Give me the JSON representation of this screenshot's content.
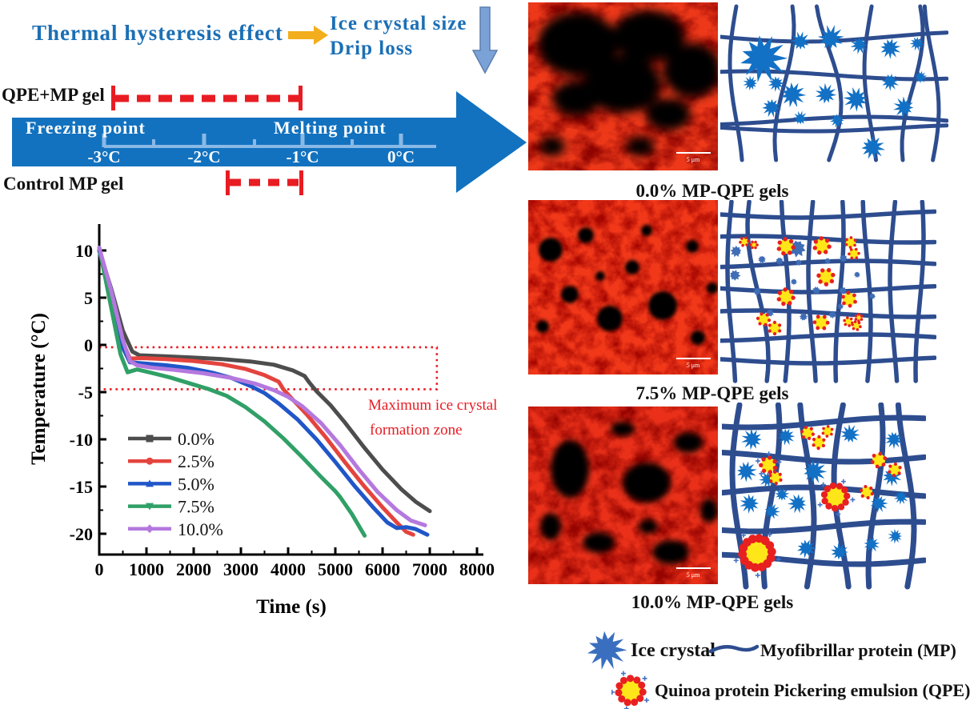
{
  "header": {
    "headline": "Thermal hysteresis effect",
    "impact_line1": "Ice crystal size",
    "impact_line2": "Drip loss"
  },
  "hysteresis": {
    "qpe_label": "QPE+MP gel",
    "control_label": "Control MP gel",
    "freezing_label": "Freezing point",
    "melting_label": "Melting point",
    "ticks": [
      "-3°C",
      "-2°C",
      "-1°C",
      "0°C"
    ],
    "qpe_range_celsius": [
      -3.0,
      -1.1
    ],
    "control_range_celsius": [
      -1.8,
      -1.1
    ]
  },
  "chart_data": {
    "type": "line",
    "xlabel": "Time (s)",
    "ylabel": "Temperature (°C)",
    "xlim": [
      0,
      8000
    ],
    "ylim": [
      -22,
      12
    ],
    "x_ticks": [
      0,
      1000,
      2000,
      3000,
      4000,
      5000,
      6000,
      7000,
      8000
    ],
    "x_minor_step": 500,
    "y_ticks": [
      10,
      5,
      0,
      -5,
      -10,
      -15,
      -20
    ],
    "y_minor_ticks": [
      7.5,
      2.5,
      -2.5,
      -7.5,
      -12.5,
      -17.5
    ],
    "grid": false,
    "legend_position": "inside lower-left",
    "annotation": {
      "line1": "Maximum ice crystal",
      "line2": "formation zone",
      "box": {
        "x": [
          0,
          7150
        ],
        "y": [
          -4.7,
          -0.25
        ]
      }
    },
    "series": [
      {
        "name": "0.0%",
        "color": "#4d4d4d",
        "marker": "square",
        "points": [
          [
            0,
            10
          ],
          [
            250,
            6
          ],
          [
            500,
            1.5
          ],
          [
            700,
            -0.7
          ],
          [
            850,
            -1.1
          ],
          [
            1400,
            -1.2
          ],
          [
            2000,
            -1.35
          ],
          [
            2600,
            -1.5
          ],
          [
            3200,
            -1.75
          ],
          [
            3700,
            -2.1
          ],
          [
            4100,
            -2.7
          ],
          [
            4350,
            -3.3
          ],
          [
            4450,
            -4.0
          ],
          [
            4600,
            -4.9
          ],
          [
            4900,
            -6.4
          ],
          [
            5200,
            -8.2
          ],
          [
            5600,
            -10.8
          ],
          [
            6000,
            -13.2
          ],
          [
            6400,
            -15.3
          ],
          [
            6700,
            -16.6
          ],
          [
            7000,
            -17.6
          ]
        ]
      },
      {
        "name": "2.5%",
        "color": "#e4443e",
        "marker": "circle",
        "points": [
          [
            0,
            10
          ],
          [
            250,
            5.5
          ],
          [
            500,
            0.3
          ],
          [
            650,
            -1.45
          ],
          [
            900,
            -1.4
          ],
          [
            1400,
            -1.5
          ],
          [
            2000,
            -1.7
          ],
          [
            2600,
            -2.05
          ],
          [
            3100,
            -2.55
          ],
          [
            3500,
            -3.2
          ],
          [
            3800,
            -3.9
          ],
          [
            3900,
            -4.7
          ],
          [
            4100,
            -5.8
          ],
          [
            4400,
            -7.4
          ],
          [
            4800,
            -9.8
          ],
          [
            5200,
            -12.4
          ],
          [
            5600,
            -14.9
          ],
          [
            6000,
            -17.2
          ],
          [
            6300,
            -18.8
          ],
          [
            6500,
            -19.8
          ],
          [
            6650,
            -20.1
          ]
        ]
      },
      {
        "name": "5.0%",
        "color": "#2056c8",
        "marker": "triangle-up",
        "points": [
          [
            0,
            10
          ],
          [
            250,
            5
          ],
          [
            500,
            -0.3
          ],
          [
            650,
            -1.85
          ],
          [
            900,
            -1.95
          ],
          [
            1400,
            -2.15
          ],
          [
            1900,
            -2.45
          ],
          [
            2400,
            -2.95
          ],
          [
            2800,
            -3.5
          ],
          [
            3200,
            -4.35
          ],
          [
            3500,
            -5.1
          ],
          [
            3800,
            -6.2
          ],
          [
            4200,
            -7.9
          ],
          [
            4600,
            -10
          ],
          [
            5000,
            -12.4
          ],
          [
            5400,
            -14.9
          ],
          [
            5800,
            -17.2
          ],
          [
            6100,
            -18.8
          ],
          [
            6300,
            -19.4
          ],
          [
            6500,
            -19.3
          ],
          [
            6700,
            -19.5
          ],
          [
            6950,
            -20.1
          ]
        ]
      },
      {
        "name": "7.5%",
        "color": "#30a067",
        "marker": "triangle-down",
        "points": [
          [
            0,
            10.3
          ],
          [
            250,
            4
          ],
          [
            450,
            -1
          ],
          [
            600,
            -2.9
          ],
          [
            800,
            -2.6
          ],
          [
            1100,
            -2.95
          ],
          [
            1500,
            -3.45
          ],
          [
            1900,
            -4.05
          ],
          [
            2300,
            -4.65
          ],
          [
            2700,
            -5.4
          ],
          [
            3100,
            -6.6
          ],
          [
            3500,
            -8.1
          ],
          [
            3900,
            -9.9
          ],
          [
            4300,
            -11.9
          ],
          [
            4700,
            -14
          ],
          [
            5000,
            -15.5
          ],
          [
            5100,
            -16.1
          ],
          [
            5350,
            -17.9
          ],
          [
            5550,
            -19.6
          ],
          [
            5620,
            -20.2
          ]
        ]
      },
      {
        "name": "10.0%",
        "color": "#b478de",
        "marker": "diamond",
        "points": [
          [
            0,
            10.3
          ],
          [
            250,
            5.8
          ],
          [
            500,
            0.5
          ],
          [
            650,
            -1.7
          ],
          [
            800,
            -2.15
          ],
          [
            1100,
            -2.4
          ],
          [
            1600,
            -2.65
          ],
          [
            2200,
            -3.0
          ],
          [
            2800,
            -3.5
          ],
          [
            3300,
            -4.1
          ],
          [
            3700,
            -4.8
          ],
          [
            4000,
            -5.5
          ],
          [
            4300,
            -6.5
          ],
          [
            4700,
            -8.3
          ],
          [
            5100,
            -10.6
          ],
          [
            5500,
            -13.2
          ],
          [
            5900,
            -15.6
          ],
          [
            6300,
            -17.5
          ],
          [
            6600,
            -18.6
          ],
          [
            6900,
            -19.1
          ]
        ]
      }
    ]
  },
  "micrographs": [
    {
      "label": "0.0% MP-QPE gels",
      "scale_bar": "5 μm"
    },
    {
      "label": "7.5% MP-QPE gels",
      "scale_bar": "5 μm"
    },
    {
      "label": "10.0% MP-QPE gels",
      "scale_bar": "5 μm"
    }
  ],
  "legend": {
    "ice": "Ice crystal",
    "mp": "Myofibrillar protein (MP)",
    "qpe": "Quinoa protein Pickering emulsion (QPE)"
  },
  "icons": {
    "yellow_arrow": "right-arrow-icon",
    "down_arrow": "down-arrow-icon",
    "big_arrow": "temperature-axis-arrow-icon",
    "ice_crystal": "ice-crystal-star-icon",
    "mp_line": "protein-strand-icon",
    "qpe_particle": "pickering-emulsion-icon"
  },
  "colors": {
    "headline_blue": "#1b6fb5",
    "arrow_blue": "#1272bf",
    "scale_light_blue": "#8ab9e6",
    "red": "#e81c23",
    "network_navy": "#2d4d8f",
    "star_blue": "#1371c5",
    "splat_blue": "#3f6db6",
    "qpe_yellow": "#ffe619",
    "qpe_dot_red": "#e82020",
    "qpe_plus_blue": "#4472c4",
    "yellow_arrow": "#f3ae1d",
    "down_arrow_fill": "#7ba2d6"
  }
}
